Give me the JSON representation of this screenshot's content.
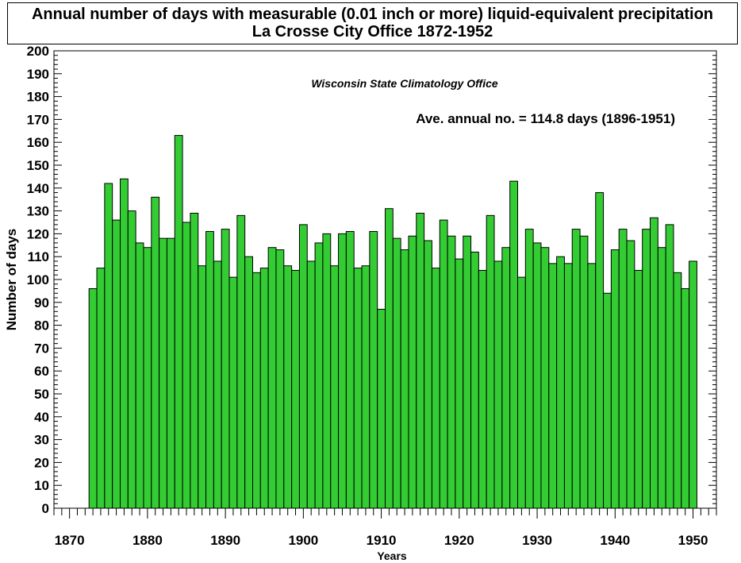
{
  "title_line1": "Annual number of days with measurable (0.01 inch or more) liquid-equivalent precipitation",
  "title_line2": "La Crosse City Office  1872-1952",
  "annotations": {
    "source": "Wisconsin State Climatology Office",
    "average": "Ave. annual no. = 114.8 days (1896-1951)"
  },
  "colors": {
    "bar_fill": "#33cc33",
    "bar_stroke": "#000000"
  },
  "chart_data": {
    "type": "bar",
    "xlabel": "Years",
    "ylabel": "Number of days",
    "xlim": [
      1868,
      1953
    ],
    "ylim": [
      0,
      200
    ],
    "xticks": [
      1870,
      1880,
      1890,
      1900,
      1910,
      1920,
      1930,
      1940,
      1950
    ],
    "yticks": [
      0,
      10,
      20,
      30,
      40,
      50,
      60,
      70,
      80,
      90,
      100,
      110,
      120,
      130,
      140,
      150,
      160,
      170,
      180,
      190,
      200
    ],
    "grid": false,
    "x": [
      1873,
      1874,
      1875,
      1876,
      1877,
      1878,
      1879,
      1880,
      1881,
      1882,
      1883,
      1884,
      1885,
      1886,
      1887,
      1888,
      1889,
      1890,
      1891,
      1892,
      1893,
      1894,
      1895,
      1896,
      1897,
      1898,
      1899,
      1900,
      1901,
      1902,
      1903,
      1904,
      1905,
      1906,
      1907,
      1908,
      1909,
      1910,
      1911,
      1912,
      1913,
      1914,
      1915,
      1916,
      1917,
      1918,
      1919,
      1920,
      1921,
      1922,
      1923,
      1924,
      1925,
      1926,
      1927,
      1928,
      1929,
      1930,
      1931,
      1932,
      1933,
      1934,
      1935,
      1936,
      1937,
      1938,
      1939,
      1940,
      1941,
      1942,
      1943,
      1944,
      1945,
      1946,
      1947,
      1948,
      1949,
      1950
    ],
    "values": [
      96,
      105,
      142,
      126,
      144,
      130,
      116,
      114,
      136,
      118,
      118,
      163,
      125,
      129,
      106,
      121,
      108,
      122,
      101,
      128,
      110,
      103,
      105,
      114,
      113,
      106,
      104,
      124,
      108,
      116,
      120,
      106,
      120,
      121,
      105,
      106,
      121,
      87,
      131,
      118,
      113,
      119,
      129,
      117,
      105,
      126,
      119,
      109,
      119,
      112,
      104,
      128,
      108,
      114,
      143,
      101,
      122,
      116,
      114,
      107,
      110,
      107,
      122,
      119,
      107,
      138,
      94,
      113,
      122,
      117,
      104,
      122,
      127,
      114,
      124,
      103,
      96,
      108
    ]
  }
}
